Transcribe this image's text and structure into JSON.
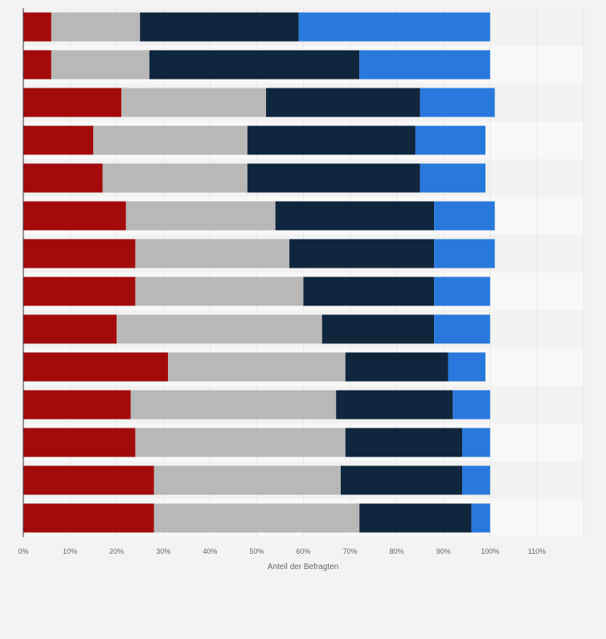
{
  "chart_data": {
    "type": "bar",
    "orientation": "horizontal",
    "stacked": true,
    "xlabel": "Anteil der Befragten",
    "xlim": [
      0,
      120
    ],
    "xticks": [
      0,
      10,
      20,
      30,
      40,
      50,
      60,
      70,
      80,
      90,
      100,
      110
    ],
    "xtick_labels": [
      "0%",
      "10%",
      "20%",
      "30%",
      "40%",
      "50%",
      "60%",
      "70%",
      "80%",
      "90%",
      "100%",
      "110%"
    ],
    "grid": true,
    "legend": "none",
    "categories": [
      "",
      "",
      "",
      "",
      "",
      "",
      "",
      "",
      "",
      "",
      "",
      "",
      "",
      ""
    ],
    "series": [
      {
        "color": "#a30b0b",
        "values": [
          6,
          6,
          21,
          15,
          17,
          22,
          24,
          24,
          20,
          31,
          23,
          24,
          28,
          28
        ]
      },
      {
        "color": "#b8b8b8",
        "values": [
          19,
          21,
          31,
          33,
          31,
          32,
          33,
          36,
          44,
          38,
          44,
          45,
          40,
          44
        ]
      },
      {
        "color": "#10263d",
        "values": [
          34,
          45,
          33,
          36,
          37,
          34,
          31,
          28,
          24,
          22,
          25,
          25,
          26,
          24
        ]
      },
      {
        "color": "#2979dd",
        "values": [
          41,
          28,
          16,
          15,
          14,
          13,
          13,
          12,
          12,
          8,
          8,
          6,
          6,
          4
        ]
      }
    ]
  }
}
